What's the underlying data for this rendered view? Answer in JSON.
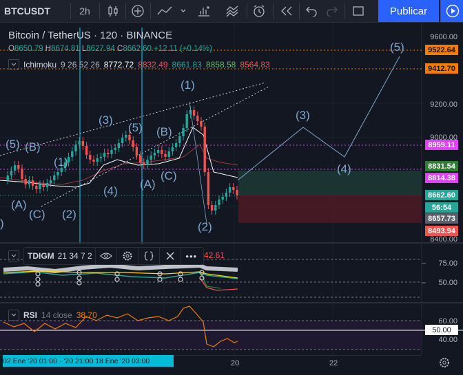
{
  "toolbar": {
    "symbol": "BTCUSDT",
    "interval": "2h",
    "publish_label": "Publicar"
  },
  "legend": {
    "title": "Bitcoin / TetherUS · 120 · BINANCE",
    "open_label": "O",
    "open": "8650.79",
    "high_label": "H",
    "high": "8674.81",
    "low_label": "L",
    "low": "8627.94",
    "close_label": "C",
    "close": "8662.60",
    "change": "+12.11 (+0.14%)"
  },
  "ichimoku": {
    "name": "Ichimoku",
    "params": "9 26 52 26",
    "v1": "8772.72",
    "v2": "8832.49",
    "v3": "8661.83",
    "v4": "8858.58",
    "v5": "8564.83"
  },
  "tdigm": {
    "name": "TDIGM",
    "params": "21 34 7 2",
    "value": "42.61"
  },
  "rsi": {
    "name": "RSI",
    "params": "14 close",
    "value": "38.70"
  },
  "price_axis": {
    "labels": [
      "9600.00",
      "9200.00",
      "9000.00",
      "8400.00"
    ],
    "badges": {
      "b9522": "9522.64",
      "b9412": "9412.70",
      "b8959": "8959.11",
      "b8831": "8831.54",
      "b8814": "8814.38",
      "b8662": "8662.60",
      "b8656": "56:54",
      "b8657": "8657.73",
      "b8493": "8493.94"
    }
  },
  "tdigm_axis": [
    "75.00",
    "50.00"
  ],
  "rsi_axis": [
    "60.00",
    "50.00",
    "40.00"
  ],
  "time_axis": {
    "date_bar": "02 Ene '20   01:00 · '20   21:00   18 Ene '20   03:00",
    "t20": "20",
    "t22": "22"
  },
  "wave_labels": {
    "w5a": "(5)",
    "wBa": "(B)",
    "wAa": "(A)",
    "wCa": "(C)",
    "w1a": "(1)",
    "w2a": "(2)",
    "w3a": "(3)",
    "w4a": "(4)",
    "w5b": "(5)",
    "wBb": "(B)",
    "wAb": "(A)",
    "wCb": "(C)",
    "w1b": "(1)",
    "w2b": "(2)",
    "w3b": "(3)",
    "w4b": "(4)",
    "w5c": "(5)",
    "wLeft": ")"
  },
  "colors": {
    "background": "#131722",
    "accent": "#2962ff",
    "up": "#26a69a",
    "down": "#ef5350",
    "cyan": "#00bcd4",
    "magenta": "#e040fb",
    "orange": "#f57c00",
    "wave": "#7fa6cf"
  }
}
